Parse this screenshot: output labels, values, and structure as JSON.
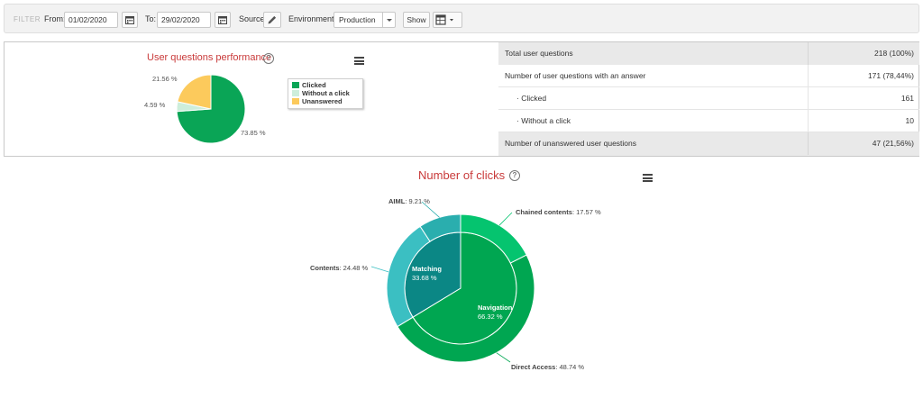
{
  "filter": {
    "label": "FILTER",
    "from_label": "From:",
    "from_value": "01/02/2020",
    "to_label": "To:",
    "to_value": "29/02/2020",
    "source_label": "Source",
    "environment_label": "Environment:",
    "environment_value": "Production",
    "show_label": "Show"
  },
  "performance": {
    "title": "User questions performance",
    "help": "?",
    "legend": [
      {
        "label": "Clicked",
        "color": "#0aa556"
      },
      {
        "label": "Without a click",
        "color": "#cdeedb"
      },
      {
        "label": "Unanswered",
        "color": "#fcca5c"
      }
    ],
    "labels": {
      "clicked": "73.85 %",
      "without": "4.59 %",
      "unanswered": "21.56 %"
    }
  },
  "stats": [
    {
      "label": "Total user questions",
      "value": "218 (100%)"
    },
    {
      "label": "Number of user questions with an answer",
      "value": "171 (78,44%)"
    },
    {
      "label": "· Clicked",
      "value": "161"
    },
    {
      "label": "· Without a click",
      "value": "10"
    },
    {
      "label": "Number of unanswered user questions",
      "value": "47 (21,56%)"
    }
  ],
  "clicks": {
    "title": "Number of clicks",
    "help": "?"
  },
  "chart_data": [
    {
      "type": "pie",
      "title": "User questions performance",
      "categories": [
        "Clicked",
        "Without a click",
        "Unanswered"
      ],
      "values": [
        73.85,
        4.59,
        21.56
      ],
      "unit": "%",
      "colors": [
        "#0aa556",
        "#cdeedb",
        "#fcca5c"
      ],
      "legend": "right"
    },
    {
      "type": "pie",
      "title": "Number of clicks",
      "rings": {
        "inner": [
          {
            "name": "Navigation",
            "value": 66.32,
            "label": "66.32 %",
            "color": "#00a651"
          },
          {
            "name": "Matching",
            "value": 33.68,
            "label": "33.68 %",
            "color": "#0b8785"
          }
        ],
        "outer": [
          {
            "name": "Chained contents",
            "value": 17.57,
            "label": "17.57 %",
            "color": "#05c46f",
            "group": "Navigation"
          },
          {
            "name": "Direct Access",
            "value": 48.74,
            "label": "48.74 %",
            "color": "#00a651",
            "group": "Navigation"
          },
          {
            "name": "Contents",
            "value": 24.48,
            "label": "24.48 %",
            "color": "#3bbfc2",
            "group": "Matching"
          },
          {
            "name": "AIML",
            "value": 9.21,
            "label": "9.21 %",
            "color": "#2aaeae",
            "group": "Matching"
          }
        ]
      }
    }
  ]
}
